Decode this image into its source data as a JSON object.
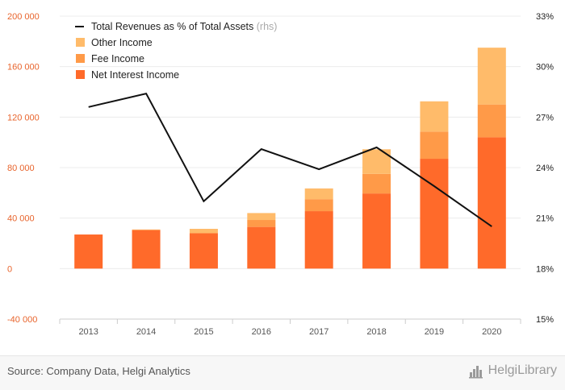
{
  "chart_data": {
    "type": "bar",
    "stacked": true,
    "categories": [
      "2013",
      "2014",
      "2015",
      "2016",
      "2017",
      "2018",
      "2019",
      "2020"
    ],
    "series": [
      {
        "name": "Net Interest Income",
        "color": "#ff6a2a",
        "values": [
          27000,
          30500,
          28000,
          33000,
          45500,
          59500,
          87000,
          104000
        ]
      },
      {
        "name": "Fee Income",
        "color": "#ff9a48",
        "values": [
          0,
          0,
          0,
          5500,
          9500,
          15500,
          21500,
          26000
        ]
      },
      {
        "name": "Other Income",
        "color": "#ffbb6a",
        "values": [
          0,
          500,
          3500,
          5500,
          8500,
          19500,
          24000,
          45000
        ]
      }
    ],
    "line_series": {
      "name": "Total Revenues as % of Total Assets",
      "axis_note": "(rhs)",
      "color": "#111111",
      "values": [
        27.6,
        28.4,
        22.0,
        25.1,
        23.9,
        25.2,
        22.9,
        20.5
      ]
    },
    "left_axis": {
      "ylim": [
        -40000,
        200000
      ],
      "ticks": [
        -40000,
        0,
        40000,
        80000,
        120000,
        160000,
        200000
      ],
      "tick_labels": [
        "-40 000",
        "0",
        "40 000",
        "80 000",
        "120 000",
        "160 000",
        "200 000"
      ],
      "color": "#e8642c"
    },
    "right_axis": {
      "ylim": [
        15,
        33
      ],
      "ticks": [
        15,
        18,
        21,
        24,
        27,
        30,
        33
      ],
      "tick_labels": [
        "15%",
        "18%",
        "21%",
        "24%",
        "27%",
        "30%",
        "33%"
      ]
    },
    "legend_position": "top-left",
    "grid": true
  },
  "footer": {
    "source": "Source: Company Data, Helgi Analytics",
    "brand": "HelgiLibrary"
  }
}
